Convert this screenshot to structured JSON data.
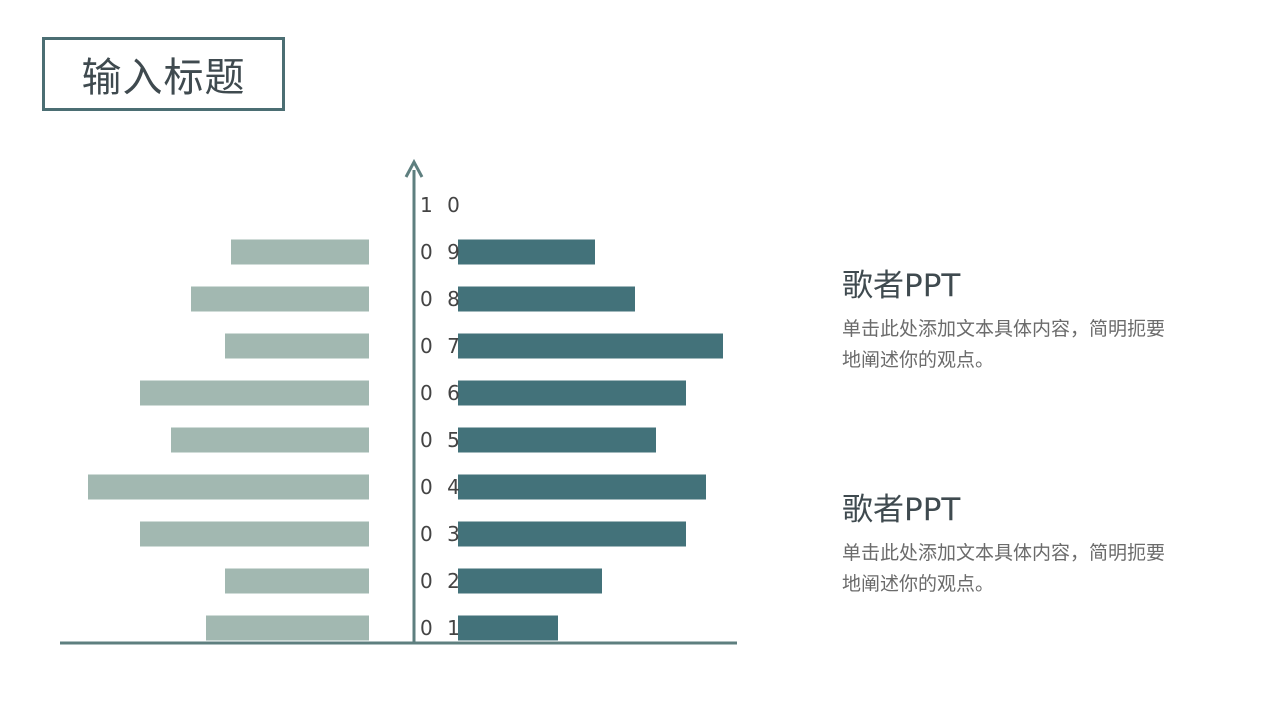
{
  "title": "输入标题",
  "colors": {
    "left_bars": "#a2b8b1",
    "right_bars": "#43727a",
    "axis": "#5e7f7f"
  },
  "chart_data": {
    "type": "bar",
    "orientation": "horizontal-mirrored",
    "categories": [
      "0 1",
      "0 2",
      "0 3",
      "0 4",
      "0 5",
      "0 6",
      "0 7",
      "0 8",
      "0 9",
      "1 0"
    ],
    "series": [
      {
        "values": [
          163,
          144,
          229,
          281,
          198,
          229,
          144,
          178,
          138,
          0
        ]
      },
      {
        "values": [
          100,
          144,
          228,
          248,
          198,
          228,
          265,
          177,
          137,
          0
        ]
      }
    ],
    "grid": false,
    "legend": "none"
  },
  "text_blocks": [
    {
      "heading": "歌者PPT",
      "body": "单击此处添加文本具体内容，简明扼要地阐述你的观点。"
    },
    {
      "heading": "歌者PPT",
      "body": "单击此处添加文本具体内容，简明扼要地阐述你的观点。"
    }
  ]
}
